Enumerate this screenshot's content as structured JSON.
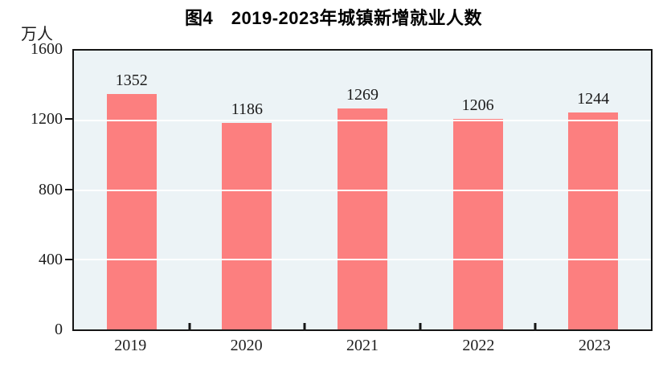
{
  "chart_data": {
    "type": "bar",
    "title": "图4　2019-2023年城镇新增就业人数",
    "unit": "万人",
    "categories": [
      "2019",
      "2020",
      "2021",
      "2022",
      "2023"
    ],
    "values": [
      1352,
      1186,
      1269,
      1206,
      1244
    ],
    "xlabel": "",
    "ylabel": "万人",
    "ylim": [
      0,
      1600
    ],
    "y_ticks": [
      0,
      400,
      800,
      1200,
      1600
    ],
    "gridline_values": [
      400,
      800,
      1200
    ],
    "grid": true,
    "legend": "none",
    "colors": {
      "bar": "#fc7f7f",
      "plot_background": "#ecf3f6",
      "gridline": "#ffffff",
      "axis": "#151515",
      "text": "#1b1b1b"
    }
  }
}
